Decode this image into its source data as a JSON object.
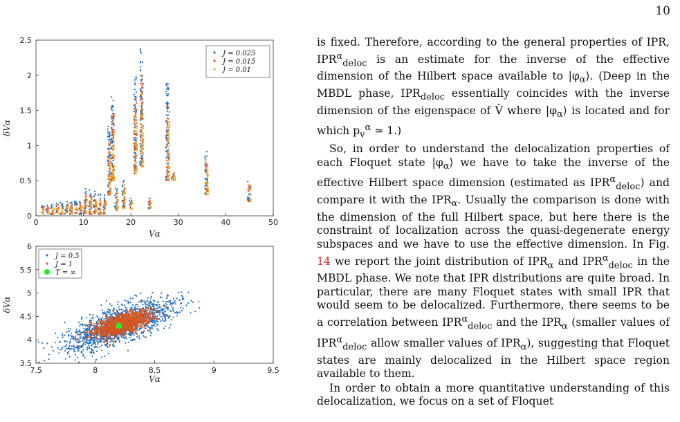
{
  "page_number": "10",
  "chart_data": [
    {
      "type": "scatter",
      "xlabel": "V_α",
      "ylabel": "δV_α",
      "xlim": [
        0,
        50
      ],
      "ylim": [
        0,
        2.5
      ],
      "xticks": [
        "0",
        "10",
        "20",
        "30",
        "40",
        "50"
      ],
      "yticks": [
        "0",
        "0.5",
        "1",
        "1.5",
        "2",
        "2.5"
      ],
      "legend_position": "top-right",
      "series": [
        {
          "name": "J = 0.025",
          "color": "#1f6fbf"
        },
        {
          "name": "J = 0.015",
          "color": "#d9561d"
        },
        {
          "name": "J = 0.01",
          "color": "#f0a92c"
        }
      ],
      "clusters": [
        {
          "x": 1.5,
          "lo": 0.02,
          "hi": 0.18
        },
        {
          "x": 2.5,
          "lo": 0.03,
          "hi": 0.17
        },
        {
          "x": 3.5,
          "lo": 0.02,
          "hi": 0.18
        },
        {
          "x": 4.5,
          "lo": 0.03,
          "hi": 0.2
        },
        {
          "x": 5.5,
          "lo": 0.02,
          "hi": 0.2
        },
        {
          "x": 6.5,
          "lo": 0.03,
          "hi": 0.21
        },
        {
          "x": 7.5,
          "lo": 0.02,
          "hi": 0.22
        },
        {
          "x": 8.5,
          "lo": 0.03,
          "hi": 0.22
        },
        {
          "x": 9.5,
          "lo": 0.02,
          "hi": 0.24
        },
        {
          "x": 10.5,
          "lo": 0.03,
          "hi": 0.42
        },
        {
          "x": 11.5,
          "lo": 0.02,
          "hi": 0.38
        },
        {
          "x": 12.5,
          "lo": 0.03,
          "hi": 0.35
        },
        {
          "x": 13.5,
          "lo": 0.02,
          "hi": 0.33
        },
        {
          "x": 14.5,
          "lo": 0.03,
          "hi": 0.31
        },
        {
          "x": 15.5,
          "lo": 0.3,
          "hi": 1.3
        },
        {
          "x": 16.2,
          "lo": 0.5,
          "hi": 1.72
        },
        {
          "x": 17,
          "lo": 0.08,
          "hi": 0.4
        },
        {
          "x": 18.5,
          "lo": 0.1,
          "hi": 0.55
        },
        {
          "x": 20,
          "lo": 0.1,
          "hi": 0.25
        },
        {
          "x": 21,
          "lo": 0.6,
          "hi": 2.0
        },
        {
          "x": 22.3,
          "lo": 0.7,
          "hi": 2.38
        },
        {
          "x": 24,
          "lo": 0.1,
          "hi": 0.3
        },
        {
          "x": 27.8,
          "lo": 0.5,
          "hi": 1.93
        },
        {
          "x": 29,
          "lo": 0.5,
          "hi": 0.65
        },
        {
          "x": 36,
          "lo": 0.3,
          "hi": 0.92
        },
        {
          "x": 45,
          "lo": 0.2,
          "hi": 0.52
        }
      ]
    },
    {
      "type": "scatter",
      "xlabel": "V_α",
      "ylabel": "δV_α",
      "xlim": [
        7.5,
        9.5
      ],
      "ylim": [
        3.5,
        6
      ],
      "xticks": [
        "7.5",
        "8",
        "8.5",
        "9",
        "9.5"
      ],
      "yticks": [
        "3.5",
        "4",
        "4.5",
        "5",
        "5.5",
        "6"
      ],
      "legend_position": "top-left",
      "series": [
        {
          "name": "J = 0.5",
          "color": "#1f6fbf",
          "center": [
            8.2,
            4.3
          ]
        },
        {
          "name": "J = 1",
          "color": "#d9561d",
          "center": [
            8.22,
            4.33
          ]
        },
        {
          "name": "T = ∞",
          "color": "#22ee22",
          "points": [
            [
              8.2,
              4.3
            ]
          ]
        }
      ]
    }
  ],
  "body": {
    "p1": "is fixed. Therefore, according to the general properties of IPR, IPR",
    "p1_sup": "α",
    "p1_sub": "deloc",
    "p1_b": " is an estimate for the inverse of the effective dimension of the Hilbert space available to |φ",
    "p1_c": "⟩. (Deep in the MBDL phase, IPR",
    "p1_d": " essentially coincides with the inverse dimension of the eigenspace of V̂ where |φ",
    "p1_e": "⟩ is located and for which p",
    "p1_f": " ≃ 1.)",
    "p2": "So, in order to understand the delocalization properties of each Floquet state |φ",
    "p2_b": "⟩ we have to take the inverse of the effective Hilbert space dimension (estimated as IPR",
    "p2_c": ") and compare it with the IPR",
    "p2_d": ". Usually the comparison is done with the dimension of the full Hilbert space, but here there is the constraint of localization across the quasi-degenerate energy subspaces and we have to use the effective dimension. In Fig. ",
    "p2_ref": "14",
    "p2_e": " we report the joint distribution of IPR",
    "p2_f": " and IPR",
    "p2_g": " in the MBDL phase. We note that IPR distributions are quite broad. In particular, there are many Floquet states with small IPR that would seem to be delocalized. Furthermore, there seems to be a correlation between IPR",
    "p2_h": " and the IPR",
    "p2_i": " (smaller values of IPR",
    "p2_j": " allow smaller values of IPR",
    "p2_k": "), suggesting that Floquet states are mainly delocalized in the Hilbert space region available to them.",
    "p3": "In order to obtain a more quantitative understanding of this delocalization, we focus on a set of Floquet"
  }
}
